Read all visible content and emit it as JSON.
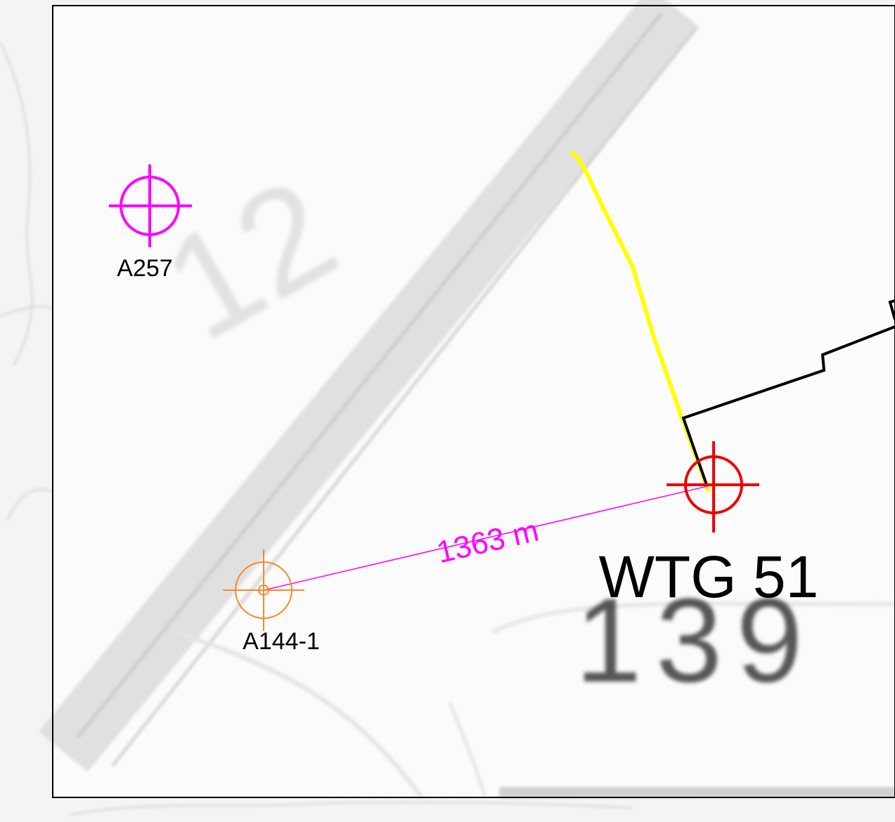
{
  "markers": [
    {
      "label": "A257"
    },
    {
      "label": "A144-1"
    },
    {
      "label": "WTG 51"
    }
  ],
  "measurement": {
    "label": "1363 m"
  },
  "map_labels": [
    "12",
    "139"
  ]
}
